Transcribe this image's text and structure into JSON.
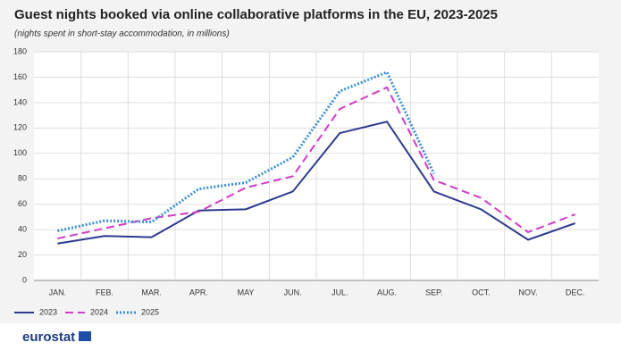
{
  "chart_data": {
    "type": "line",
    "title": "Guest nights booked via online collaborative platforms in the EU, 2023-2025",
    "subtitle": "(nights spent in short-stay accommodation, in millions)",
    "categories": [
      "JAN.",
      "FEB.",
      "MAR.",
      "APR.",
      "MAY",
      "JUN.",
      "JUL.",
      "AUG.",
      "SEP.",
      "OCT.",
      "NOV.",
      "DEC."
    ],
    "series": [
      {
        "name": "2023",
        "color": "#2b3a8f",
        "style": "solid",
        "values": [
          29,
          35,
          34,
          55,
          56,
          70,
          116,
          125,
          70,
          56,
          32,
          45
        ]
      },
      {
        "name": "2024",
        "color": "#d23bc8",
        "style": "dashed",
        "values": [
          33,
          41,
          49,
          54,
          73,
          82,
          135,
          152,
          79,
          65,
          38,
          52
        ]
      },
      {
        "name": "2025",
        "color": "#3b8fdc",
        "style": "dotted",
        "values": [
          39,
          47,
          46,
          72,
          77,
          97,
          149,
          164,
          84,
          null,
          null,
          null
        ]
      }
    ],
    "ylim": [
      0,
      180
    ],
    "yticks": [
      0,
      20,
      40,
      60,
      80,
      100,
      120,
      140,
      160,
      180
    ],
    "grid": true,
    "legend": "bottom-left",
    "logo": "eurostat"
  }
}
